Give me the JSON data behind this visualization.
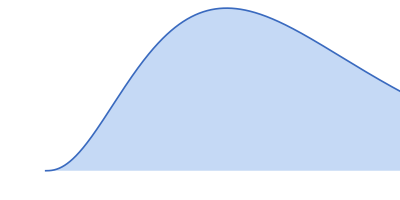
{
  "fill_color": "#c5d9f5",
  "line_color": "#3a6abf",
  "line_width": 1.2,
  "background_color": "#ffffff",
  "figsize": [
    4.0,
    2.0
  ],
  "dpi": 100,
  "xlim": [
    -0.08,
    0.62
  ],
  "ylim": [
    -0.18,
    1.05
  ]
}
